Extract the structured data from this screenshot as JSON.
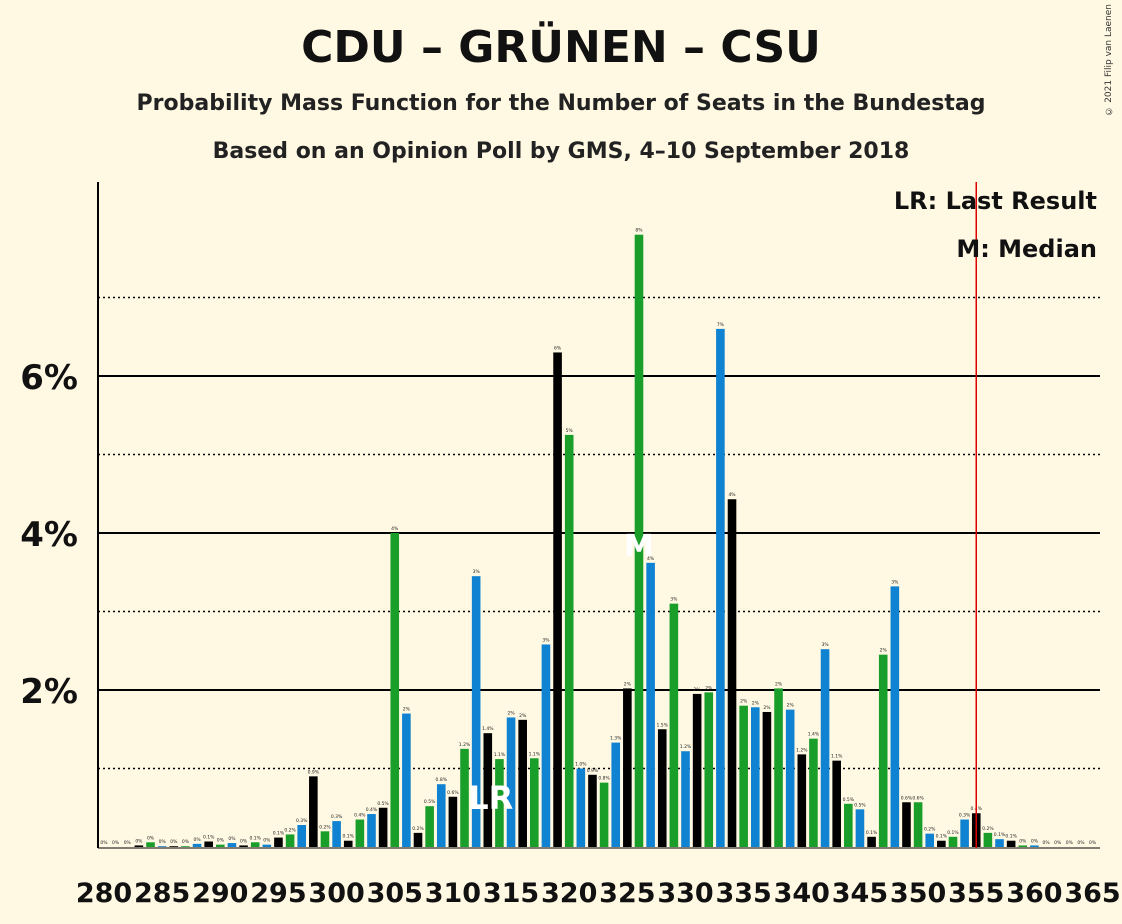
{
  "title": "CDU – GRÜNEN – CSU",
  "subtitle": "Probability Mass Function for the Number of Seats in the Bundestag",
  "subtitle2": "Based on an Opinion Poll by GMS, 4–10 September 2018",
  "copyright": "© 2021 Filip van Laenen",
  "legend": {
    "lr": "LR: Last Result",
    "m": "M: Median"
  },
  "markers": {
    "lr_label": "LR",
    "median_label": "M",
    "last_result_seat": 313,
    "median_seat": 326,
    "majority_seat": 355
  },
  "colors": {
    "black": "#000000",
    "green": "#1a9e2a",
    "blue": "#0f82d2",
    "background": "#fff8e2",
    "majority_line": "#dd0000"
  },
  "chart_data": {
    "type": "bar",
    "xlabel": "",
    "ylabel": "",
    "x_tick_labels": [
      "280",
      "285",
      "290",
      "295",
      "300",
      "305",
      "310",
      "315",
      "320",
      "325",
      "330",
      "335",
      "340",
      "345",
      "350",
      "355",
      "360",
      "365"
    ],
    "y_tick_labels": [
      "2%",
      "4%",
      "6%"
    ],
    "ylim": [
      0,
      8.5
    ],
    "grid": true,
    "seats": [
      280,
      281,
      282,
      283,
      284,
      285,
      286,
      287,
      288,
      289,
      290,
      291,
      292,
      293,
      294,
      295,
      296,
      297,
      298,
      299,
      300,
      301,
      302,
      303,
      304,
      305,
      306,
      307,
      308,
      309,
      310,
      311,
      312,
      313,
      314,
      315,
      316,
      317,
      318,
      319,
      320,
      321,
      322,
      323,
      324,
      325,
      326,
      327,
      328,
      329,
      330,
      331,
      332,
      333,
      334,
      335,
      336,
      337,
      338,
      339,
      340,
      341,
      342,
      343,
      344,
      345,
      346,
      347,
      348,
      349,
      350,
      351,
      352,
      353,
      354,
      355,
      356,
      357,
      358,
      359,
      360,
      361,
      362,
      363,
      364,
      365
    ],
    "values": [
      0,
      0,
      0,
      0.02,
      0.06,
      0.01,
      0.01,
      0.01,
      0.04,
      0.07,
      0.03,
      0.05,
      0.02,
      0.06,
      0.03,
      0.12,
      0.16,
      0.28,
      0.9,
      0.2,
      0.33,
      0.08,
      0.35,
      0.42,
      0.5,
      4.0,
      1.7,
      0.18,
      0.52,
      0.8,
      0.64,
      1.25,
      3.45,
      1.45,
      1.12,
      1.65,
      1.62,
      1.13,
      2.58,
      6.3,
      5.25,
      1.0,
      0.92,
      0.82,
      1.33,
      2.02,
      7.8,
      3.62,
      1.5,
      3.1,
      1.22,
      1.95,
      1.97,
      6.6,
      4.43,
      1.8,
      1.78,
      1.72,
      2.02,
      1.75,
      1.18,
      1.38,
      2.52,
      1.1,
      0.55,
      0.48,
      0.13,
      2.45,
      3.32,
      0.57,
      0.57,
      0.17,
      0.08,
      0.13,
      0.35,
      0.43,
      0.18,
      0.1,
      0.08,
      0.02,
      0.02,
      0,
      0,
      0,
      0,
      0
    ],
    "bar_labels": [
      "0%",
      "0%",
      "0%",
      "0%",
      "0%",
      "0%",
      "0%",
      "0%",
      "0%",
      "0.1%",
      "0%",
      "0%",
      "0%",
      "0.1%",
      "0%",
      "0.1%",
      "0.2%",
      "0.3%",
      "0.9%",
      "0.2%",
      "0.3%",
      "0.1%",
      "0.4%",
      "0.4%",
      "0.5%",
      "4%",
      "2%",
      "0.2%",
      "0.5%",
      "0.8%",
      "0.6%",
      "1.2%",
      "3%",
      "1.4%",
      "1.1%",
      "2%",
      "2%",
      "1.1%",
      "3%",
      "6%",
      "5%",
      "1.0%",
      "0.9%",
      "0.8%",
      "1.3%",
      "2%",
      "8%",
      "4%",
      "1.5%",
      "3%",
      "1.2%",
      "2%",
      "2%",
      "7%",
      "4%",
      "2%",
      "2%",
      "2%",
      "2%",
      "2%",
      "1.2%",
      "1.4%",
      "3%",
      "1.1%",
      "0.5%",
      "0.5%",
      "0.1%",
      "2%",
      "3%",
      "0.6%",
      "0.6%",
      "0.2%",
      "0.1%",
      "0.1%",
      "0.3%",
      "0.4%",
      "0.2%",
      "0.1%",
      "0.1%",
      "0%",
      "0%",
      "0%",
      "0%",
      "0%",
      "0%",
      "0%"
    ]
  }
}
